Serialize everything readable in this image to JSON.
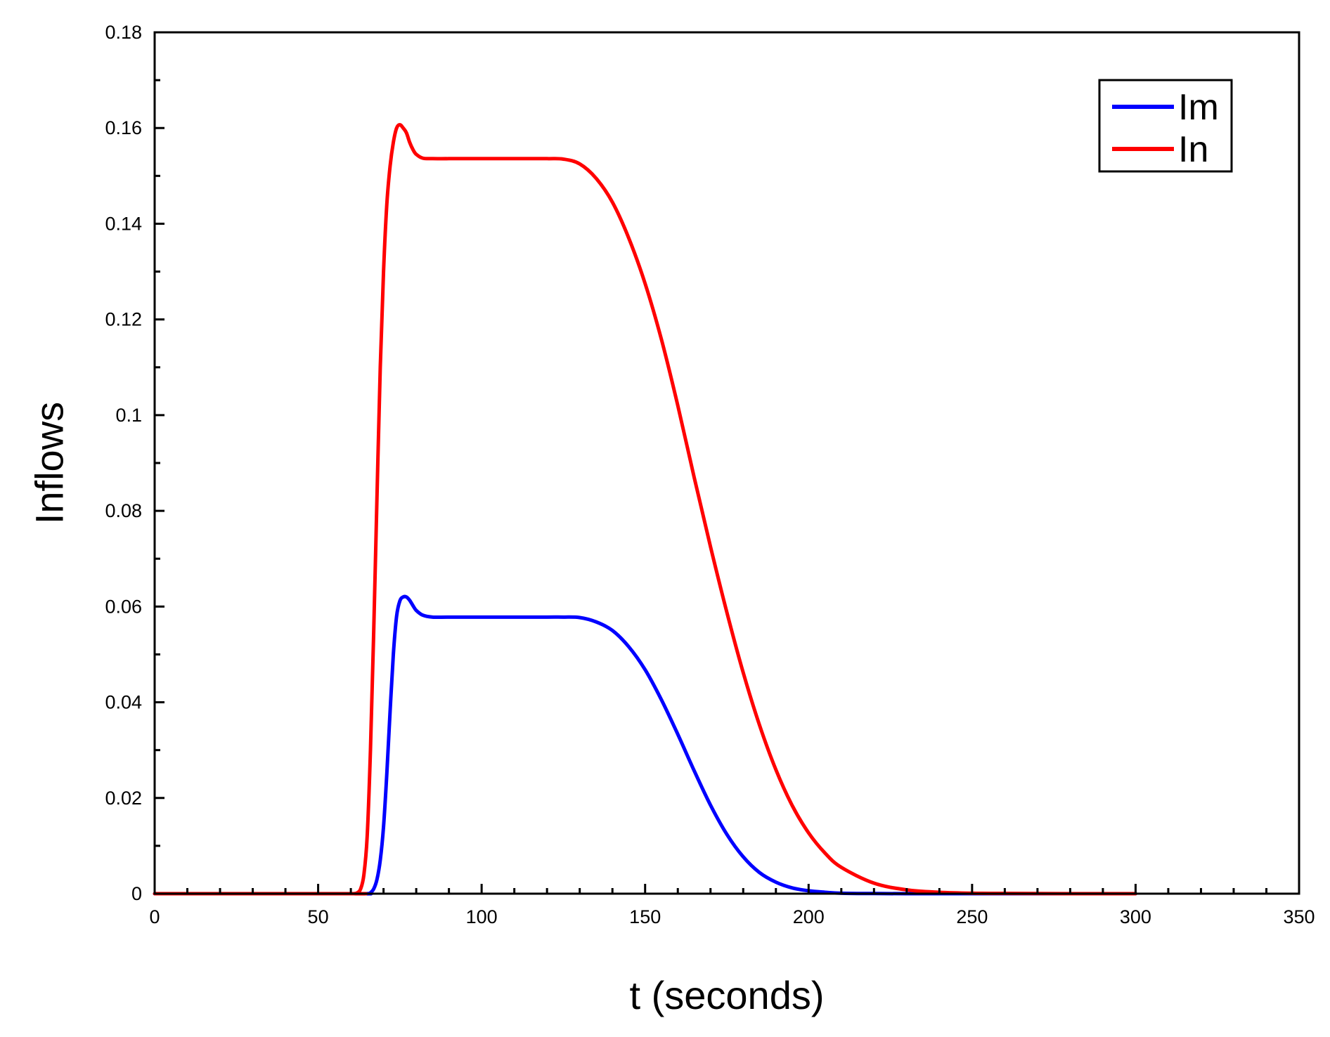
{
  "chart_data": {
    "type": "line",
    "xlabel": "t (seconds)",
    "ylabel": "Inflows",
    "xlim": [
      0,
      350
    ],
    "ylim": [
      0,
      0.18
    ],
    "x_ticks": [
      0,
      50,
      100,
      150,
      200,
      250,
      300,
      350
    ],
    "x_tick_labels": [
      "0",
      "50",
      "100",
      "150",
      "200",
      "250",
      "300",
      "350"
    ],
    "y_ticks": [
      0,
      0.02,
      0.04,
      0.06,
      0.08,
      0.1,
      0.12,
      0.14,
      0.16,
      0.18
    ],
    "y_tick_labels": [
      "0",
      "0.02",
      "0.04",
      "0.06",
      "0.08",
      "0.1",
      "0.12",
      "0.14",
      "0.16",
      "0.18"
    ],
    "grid": false,
    "legend_position": "top-right",
    "series": [
      {
        "name": "Im",
        "color": "#0000ff",
        "x": [
          0,
          60,
          65,
          66,
          67,
          68,
          69,
          70,
          71,
          72,
          73,
          74,
          75,
          76,
          77,
          78,
          79,
          80,
          82,
          85,
          90,
          100,
          110,
          120,
          125,
          130,
          135,
          140,
          145,
          150,
          155,
          160,
          165,
          170,
          175,
          180,
          185,
          190,
          195,
          200,
          205,
          210,
          220,
          230,
          250,
          300
        ],
        "y": [
          0,
          0,
          0,
          0.0002,
          0.001,
          0.003,
          0.007,
          0.014,
          0.025,
          0.038,
          0.05,
          0.058,
          0.0612,
          0.062,
          0.062,
          0.0613,
          0.0602,
          0.0592,
          0.0582,
          0.0578,
          0.0578,
          0.0578,
          0.0578,
          0.0578,
          0.0578,
          0.0577,
          0.0568,
          0.055,
          0.0516,
          0.0468,
          0.0405,
          0.0333,
          0.0257,
          0.0185,
          0.0124,
          0.0077,
          0.0044,
          0.0024,
          0.0012,
          0.0006,
          0.0003,
          0.0001,
          3e-05,
          0,
          0,
          0
        ]
      },
      {
        "name": "In",
        "color": "#ff0000",
        "x": [
          0,
          60,
          61,
          62,
          63,
          64,
          65,
          66,
          67,
          68,
          69,
          70,
          71,
          72,
          73,
          74,
          75,
          76,
          77,
          78,
          79,
          80,
          82,
          85,
          90,
          100,
          110,
          120,
          125,
          130,
          135,
          140,
          145,
          150,
          155,
          160,
          165,
          170,
          175,
          180,
          185,
          190,
          195,
          200,
          205,
          210,
          220,
          230,
          240,
          250,
          260,
          280,
          300
        ],
        "y": [
          0,
          0,
          0,
          0.0002,
          0.001,
          0.004,
          0.012,
          0.03,
          0.055,
          0.083,
          0.11,
          0.13,
          0.144,
          0.152,
          0.157,
          0.16,
          0.1607,
          0.16,
          0.159,
          0.157,
          0.1555,
          0.1545,
          0.1537,
          0.1536,
          0.1536,
          0.1536,
          0.1536,
          0.1536,
          0.1535,
          0.1525,
          0.1495,
          0.1445,
          0.137,
          0.1275,
          0.1158,
          0.102,
          0.087,
          0.0725,
          0.0588,
          0.0462,
          0.0352,
          0.0259,
          0.0184,
          0.0127,
          0.0085,
          0.0055,
          0.0022,
          0.0008,
          0.0003,
          0.0001,
          5e-05,
          0,
          0
        ]
      }
    ]
  }
}
